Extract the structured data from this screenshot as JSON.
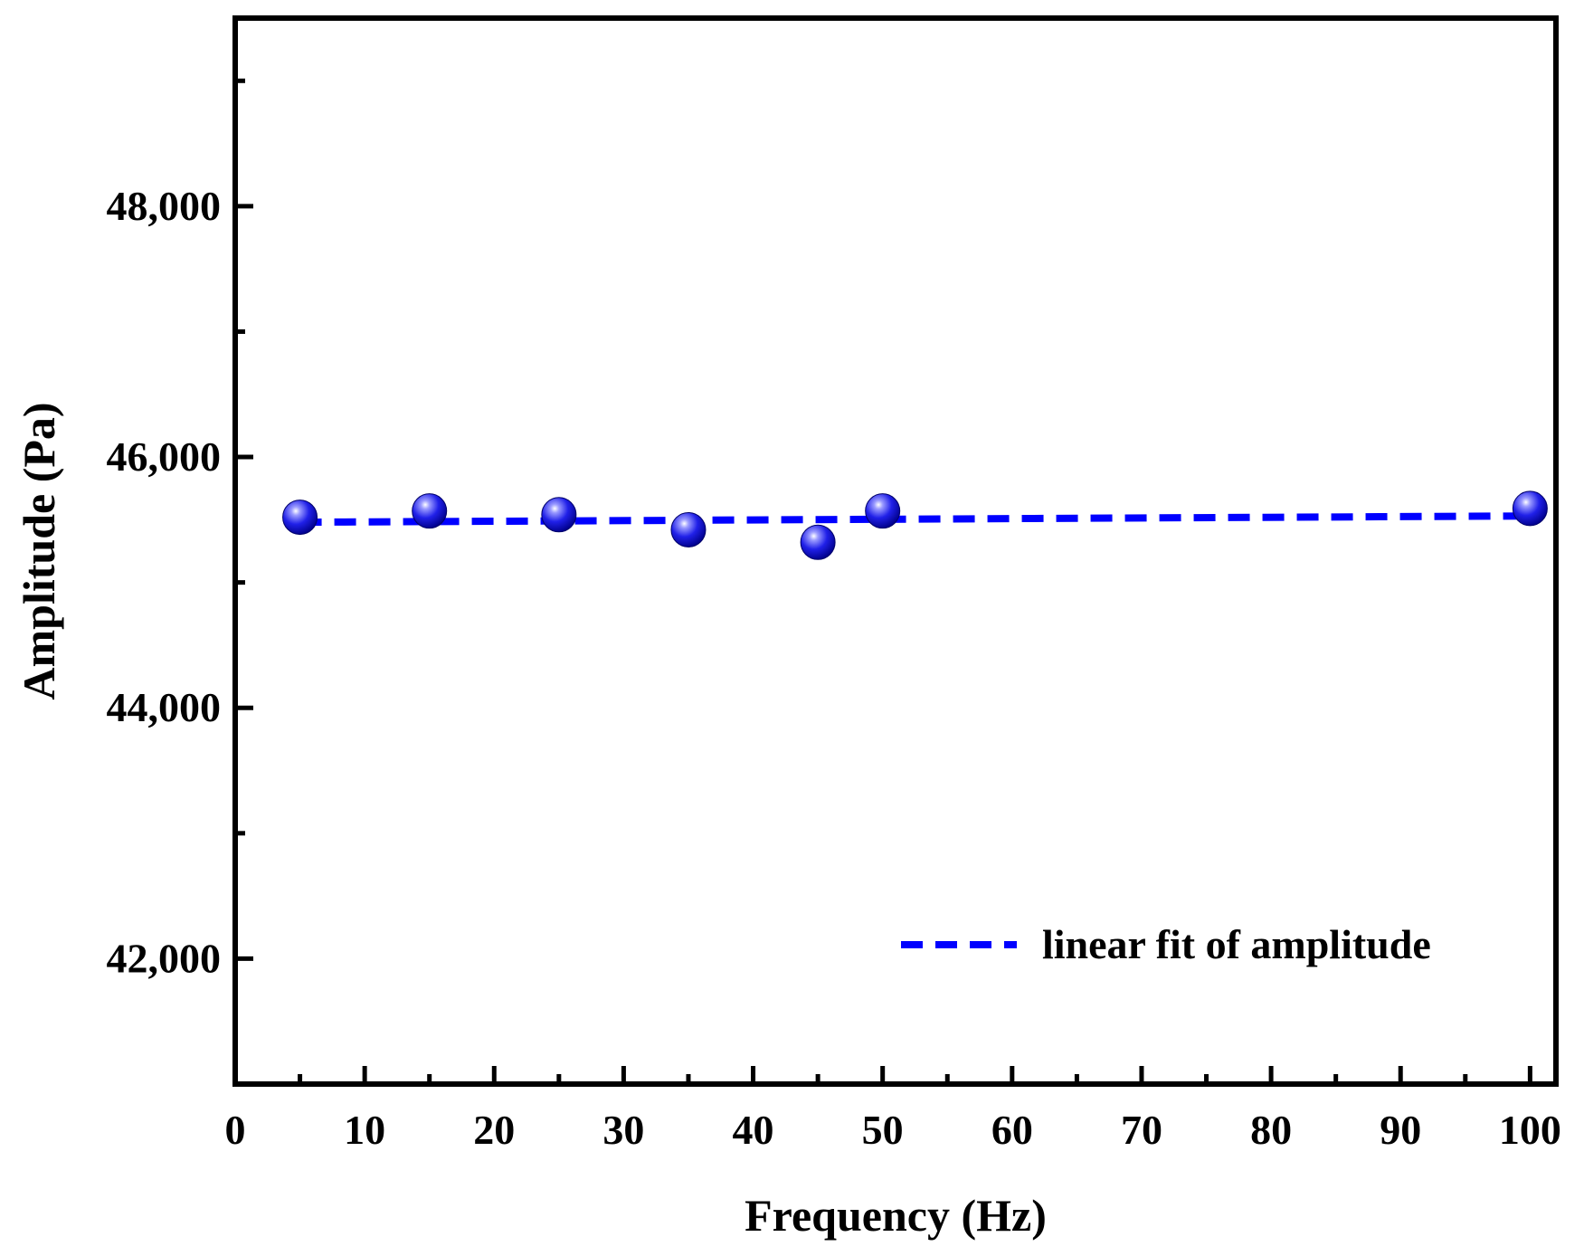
{
  "chart_data": {
    "type": "scatter",
    "title": "",
    "xlabel": "Frequency (Hz)",
    "ylabel": "Amplitude (Pa)",
    "xlim": [
      0,
      102
    ],
    "ylim": [
      41000,
      49500
    ],
    "x_major_ticks": [
      0,
      10,
      20,
      30,
      40,
      50,
      60,
      70,
      80,
      90,
      100
    ],
    "x_tick_labels": [
      "0",
      "10",
      "20",
      "30",
      "40",
      "50",
      "60",
      "70",
      "80",
      "90",
      "100"
    ],
    "x_minor_ticks": [
      5,
      15,
      25,
      35,
      45,
      55,
      65,
      75,
      85,
      95
    ],
    "y_major_ticks": [
      42000,
      44000,
      46000,
      48000
    ],
    "y_tick_labels": [
      "42,000",
      "44,000",
      "46,000",
      "48,000"
    ],
    "y_minor_ticks": [
      41000,
      43000,
      45000,
      47000,
      49000
    ],
    "grid": false,
    "series": [
      {
        "name": "amplitude",
        "kind": "scatter",
        "color": "#1010e0",
        "x": [
          5,
          15,
          25,
          35,
          45,
          50,
          100
        ],
        "y": [
          45520,
          45570,
          45540,
          45420,
          45320,
          45570,
          45590
        ]
      },
      {
        "name": "linear fit of amplitude",
        "kind": "line",
        "style": "dashed",
        "color": "#0000ff",
        "x": [
          5,
          100
        ],
        "y": [
          45480,
          45530
        ]
      }
    ],
    "legend": {
      "position": "bottom-right",
      "entries": [
        "linear fit of amplitude"
      ]
    }
  }
}
